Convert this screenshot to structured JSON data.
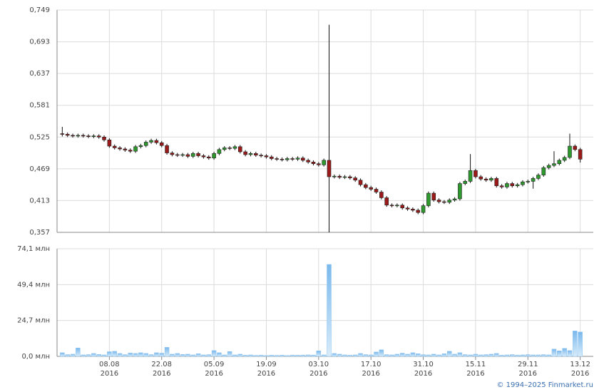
{
  "chart_data": [
    {
      "type": "candlestick",
      "up_color": "#2e9a2e",
      "down_color": "#9c1a1a",
      "xlim": [
        -1,
        101.5
      ],
      "xticks": [
        {
          "value": 9,
          "label": "08.08\n2016"
        },
        {
          "value": 19,
          "label": "22.08\n2016"
        },
        {
          "value": 29,
          "label": "05.09\n2016"
        },
        {
          "value": 39,
          "label": "19.09\n2016"
        },
        {
          "value": 49,
          "label": "03.10\n2016"
        },
        {
          "value": 59,
          "label": "17.10\n2016"
        },
        {
          "value": 69,
          "label": "31.10\n2016"
        },
        {
          "value": 79,
          "label": "15.11\n2016"
        },
        {
          "value": 89,
          "label": "29.11\n2016"
        },
        {
          "value": 99,
          "label": "13.12\n2016"
        }
      ],
      "ylim": [
        0.357,
        0.749
      ],
      "yticks": [
        {
          "value": 0.357,
          "label": "0,357"
        },
        {
          "value": 0.413,
          "label": "0,413"
        },
        {
          "value": 0.469,
          "label": "0,469"
        },
        {
          "value": 0.525,
          "label": "0,525"
        },
        {
          "value": 0.581,
          "label": "0,581"
        },
        {
          "value": 0.637,
          "label": "0,637"
        },
        {
          "value": 0.693,
          "label": "0,693"
        },
        {
          "value": 0.749,
          "label": "0,749"
        }
      ],
      "grid": true,
      "open": [
        0.531,
        0.53,
        0.528,
        0.527,
        0.528,
        0.527,
        0.526,
        0.527,
        0.525,
        0.52,
        0.509,
        0.506,
        0.504,
        0.502,
        0.5,
        0.508,
        0.51,
        0.516,
        0.519,
        0.515,
        0.51,
        0.497,
        0.494,
        0.493,
        0.494,
        0.491,
        0.496,
        0.492,
        0.49,
        0.488,
        0.496,
        0.503,
        0.506,
        0.505,
        0.508,
        0.499,
        0.494,
        0.496,
        0.493,
        0.492,
        0.49,
        0.487,
        0.486,
        0.485,
        0.487,
        0.486,
        0.488,
        0.484,
        0.481,
        0.478,
        0.476,
        0.484,
        0.455,
        0.456,
        0.454,
        0.455,
        0.453,
        0.449,
        0.441,
        0.436,
        0.433,
        0.428,
        0.418,
        0.405,
        0.404,
        0.405,
        0.4,
        0.398,
        0.396,
        0.392,
        0.404,
        0.426,
        0.414,
        0.411,
        0.41,
        0.414,
        0.416,
        0.443,
        0.447,
        0.466,
        0.455,
        0.451,
        0.449,
        0.452,
        0.439,
        0.437,
        0.443,
        0.439,
        0.441,
        0.446,
        0.447,
        0.452,
        0.458,
        0.471,
        0.475,
        0.478,
        0.484,
        0.489,
        0.509,
        0.503
      ],
      "high": [
        0.543,
        0.533,
        0.531,
        0.531,
        0.531,
        0.53,
        0.53,
        0.53,
        0.528,
        0.523,
        0.512,
        0.509,
        0.507,
        0.505,
        0.511,
        0.513,
        0.519,
        0.522,
        0.522,
        0.518,
        0.513,
        0.5,
        0.497,
        0.497,
        0.497,
        0.499,
        0.499,
        0.495,
        0.493,
        0.499,
        0.506,
        0.509,
        0.509,
        0.511,
        0.511,
        0.502,
        0.499,
        0.499,
        0.496,
        0.495,
        0.493,
        0.49,
        0.489,
        0.49,
        0.49,
        0.491,
        0.491,
        0.487,
        0.484,
        0.481,
        0.487,
        0.723,
        0.459,
        0.459,
        0.458,
        0.458,
        0.456,
        0.452,
        0.444,
        0.439,
        0.436,
        0.431,
        0.421,
        0.408,
        0.408,
        0.408,
        0.403,
        0.401,
        0.399,
        0.407,
        0.429,
        0.429,
        0.417,
        0.414,
        0.417,
        0.419,
        0.446,
        0.45,
        0.495,
        0.469,
        0.458,
        0.454,
        0.455,
        0.455,
        0.442,
        0.446,
        0.446,
        0.444,
        0.449,
        0.45,
        0.455,
        0.461,
        0.474,
        0.478,
        0.5,
        0.487,
        0.492,
        0.531,
        0.512,
        0.506
      ],
      "low": [
        0.526,
        0.525,
        0.524,
        0.524,
        0.524,
        0.523,
        0.523,
        0.522,
        0.517,
        0.506,
        0.503,
        0.501,
        0.499,
        0.497,
        0.497,
        0.505,
        0.507,
        0.513,
        0.512,
        0.507,
        0.494,
        0.491,
        0.49,
        0.49,
        0.488,
        0.488,
        0.489,
        0.487,
        0.485,
        0.485,
        0.493,
        0.5,
        0.502,
        0.502,
        0.496,
        0.491,
        0.491,
        0.49,
        0.489,
        0.487,
        0.484,
        0.483,
        0.482,
        0.482,
        0.483,
        0.483,
        0.481,
        0.478,
        0.475,
        0.473,
        0.473,
        0.357,
        0.452,
        0.451,
        0.451,
        0.45,
        0.446,
        0.438,
        0.433,
        0.43,
        0.425,
        0.415,
        0.402,
        0.401,
        0.401,
        0.397,
        0.395,
        0.393,
        0.389,
        0.389,
        0.401,
        0.411,
        0.408,
        0.407,
        0.407,
        0.411,
        0.413,
        0.44,
        0.444,
        0.452,
        0.448,
        0.446,
        0.446,
        0.436,
        0.434,
        0.434,
        0.436,
        0.436,
        0.438,
        0.443,
        0.434,
        0.449,
        0.455,
        0.468,
        0.472,
        0.475,
        0.481,
        0.486,
        0.5,
        0.48
      ],
      "close": [
        0.53,
        0.528,
        0.527,
        0.528,
        0.527,
        0.526,
        0.527,
        0.525,
        0.52,
        0.509,
        0.506,
        0.504,
        0.502,
        0.5,
        0.508,
        0.51,
        0.516,
        0.519,
        0.515,
        0.51,
        0.497,
        0.494,
        0.493,
        0.494,
        0.491,
        0.496,
        0.492,
        0.49,
        0.488,
        0.496,
        0.503,
        0.506,
        0.505,
        0.508,
        0.499,
        0.494,
        0.496,
        0.493,
        0.492,
        0.49,
        0.487,
        0.486,
        0.485,
        0.487,
        0.486,
        0.488,
        0.484,
        0.481,
        0.478,
        0.476,
        0.484,
        0.455,
        0.456,
        0.454,
        0.455,
        0.453,
        0.449,
        0.441,
        0.436,
        0.433,
        0.428,
        0.418,
        0.405,
        0.404,
        0.405,
        0.4,
        0.398,
        0.396,
        0.392,
        0.404,
        0.426,
        0.414,
        0.411,
        0.41,
        0.414,
        0.416,
        0.443,
        0.447,
        0.466,
        0.455,
        0.451,
        0.449,
        0.452,
        0.439,
        0.437,
        0.443,
        0.439,
        0.441,
        0.446,
        0.447,
        0.452,
        0.458,
        0.471,
        0.475,
        0.478,
        0.484,
        0.489,
        0.509,
        0.503,
        0.486
      ]
    },
    {
      "type": "bar",
      "color": "#8cc4f0",
      "ylim": [
        0,
        74.1
      ],
      "yticks": [
        {
          "value": 0,
          "label": "0,0 млн"
        },
        {
          "value": 24.7,
          "label": "24,7 млн"
        },
        {
          "value": 49.4,
          "label": "49,4 млн"
        },
        {
          "value": 74.1,
          "label": "74,1 млн"
        }
      ],
      "grid": true,
      "values": [
        2.5,
        1.2,
        1.5,
        5.8,
        1.0,
        1.2,
        2.0,
        1.3,
        1.0,
        3.2,
        3.5,
        2.0,
        1.2,
        2.3,
        2.0,
        2.5,
        2.0,
        1.2,
        2.5,
        2.2,
        6.2,
        1.5,
        2.0,
        1.3,
        1.5,
        1.0,
        1.8,
        1.0,
        1.2,
        4.0,
        2.5,
        1.0,
        3.3,
        1.0,
        1.5,
        0.8,
        1.0,
        0.7,
        0.8,
        0.6,
        0.8,
        0.7,
        0.8,
        0.6,
        0.9,
        0.8,
        0.9,
        1.0,
        0.9,
        3.8,
        1.0,
        63.3,
        2.0,
        1.5,
        1.0,
        0.8,
        1.0,
        2.0,
        1.2,
        1.0,
        3.0,
        4.5,
        1.2,
        1.0,
        1.5,
        2.2,
        1.5,
        2.5,
        1.8,
        1.2,
        1.0,
        1.5,
        1.0,
        1.8,
        3.5,
        1.5,
        2.5,
        1.2,
        1.0,
        1.5,
        1.0,
        1.2,
        1.5,
        2.0,
        0.8,
        1.0,
        1.2,
        0.9,
        1.0,
        1.2,
        1.0,
        1.0,
        1.2,
        1.0,
        5.0,
        3.8,
        5.5,
        4.0,
        17.5,
        16.8
      ]
    }
  ],
  "footer": "© 1994–2025 Finmarket.ru"
}
